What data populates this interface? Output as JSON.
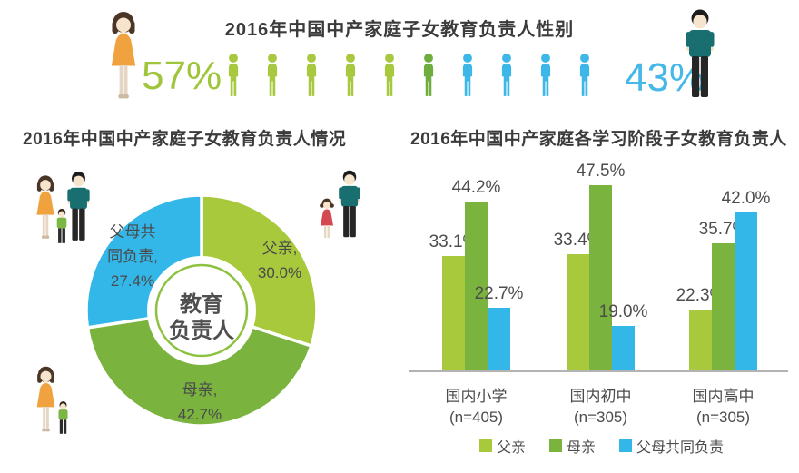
{
  "chart_data": [
    {
      "type": "pictogram",
      "title": "2016年中国中产家庭子女教育负责人性别",
      "left_value": "57%",
      "right_value": "43%",
      "left_color": "#9fc53c",
      "right_color": "#45b8e8",
      "figure_colors": [
        "#a8c93f",
        "#a8c93f",
        "#a8c93f",
        "#a8c93f",
        "#a8c93f",
        "#6fae3e",
        "#3cb7e8",
        "#3cb7e8",
        "#3cb7e8",
        "#3cb7e8"
      ]
    },
    {
      "type": "pie",
      "donut": true,
      "title": "2016年中国中产家庭子女教育负责人情况",
      "center_label_lines": [
        "教育",
        "负责人"
      ],
      "slices": [
        {
          "name": "父亲",
          "value": 30.0,
          "color": "#a8c93c",
          "label_lines": [
            "父亲,",
            "30.0%"
          ]
        },
        {
          "name": "母亲",
          "value": 42.7,
          "color": "#7ab43f",
          "label_lines": [
            "母亲,",
            "42.7%"
          ]
        },
        {
          "name": "父母共同负责",
          "value": 27.4,
          "color": "#33b7e8",
          "label_lines": [
            "父母共",
            "同负责,",
            "27.4%"
          ]
        }
      ]
    },
    {
      "type": "bar",
      "title": "2016年中国中产家庭各学习阶段子女教育负责人",
      "categories": [
        "国内小学",
        "国内初中",
        "国内高中"
      ],
      "category_sublabels": [
        "(n=405)",
        "(n=305)",
        "(n=305)"
      ],
      "series": [
        {
          "name": "父亲",
          "color": "#a8c93c",
          "values": [
            33.1,
            33.4,
            22.3
          ]
        },
        {
          "name": "母亲",
          "color": "#7ab43f",
          "values": [
            44.2,
            47.5,
            35.7
          ]
        },
        {
          "name": "父母共同负责",
          "color": "#33b7e8",
          "values": [
            22.7,
            19.0,
            42.0
          ]
        }
      ],
      "ylim": [
        0,
        50
      ],
      "value_labels": true,
      "grid": false,
      "legend_position": "bottom"
    }
  ]
}
